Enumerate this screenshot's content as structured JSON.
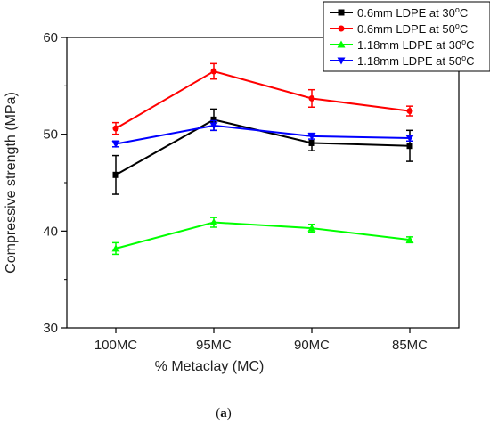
{
  "chart_data": {
    "type": "line",
    "title": "",
    "xlabel": "% Metaclay (MC)",
    "ylabel": "Compressive strength (MPa)",
    "categories": [
      "100MC",
      "95MC",
      "90MC",
      "85MC"
    ],
    "ylim": [
      30,
      60
    ],
    "yticks": [
      30,
      40,
      50,
      60
    ],
    "grid": false,
    "legend_position": "top-right",
    "series": [
      {
        "name": "0.6mm LDPE at 30°C",
        "name_main": "0.6mm LDPE at 30",
        "name_sup": "o",
        "name_end": "C",
        "color": "#000000",
        "marker": "square",
        "values": [
          45.8,
          51.5,
          49.1,
          48.8
        ],
        "errors": [
          2.0,
          1.1,
          0.8,
          1.6
        ]
      },
      {
        "name": "0.6mm LDPE at 50°C",
        "name_main": "0.6mm LDPE at 50",
        "name_sup": "o",
        "name_end": "C",
        "color": "#ff0000",
        "marker": "circle",
        "values": [
          50.6,
          56.5,
          53.7,
          52.4
        ],
        "errors": [
          0.6,
          0.8,
          0.9,
          0.5
        ]
      },
      {
        "name": "1.18mm LDPE at 30°C",
        "name_main": "1.18mm LDPE at 30",
        "name_sup": "o",
        "name_end": "C",
        "color": "#00ff00",
        "marker": "triangle-up",
        "values": [
          38.2,
          40.9,
          40.3,
          39.1
        ],
        "errors": [
          0.6,
          0.5,
          0.4,
          0.3
        ]
      },
      {
        "name": "1.18mm LDPE at 50°C",
        "name_main": "1.18mm LDPE at 50",
        "name_sup": "o",
        "name_end": "C",
        "color": "#0000ff",
        "marker": "triangle-down",
        "values": [
          49.0,
          50.9,
          49.8,
          49.6
        ],
        "errors": [
          0.3,
          0.5,
          0.3,
          0.3
        ]
      }
    ]
  },
  "caption": {
    "open": "(",
    "letter": "a",
    "close": ")"
  }
}
